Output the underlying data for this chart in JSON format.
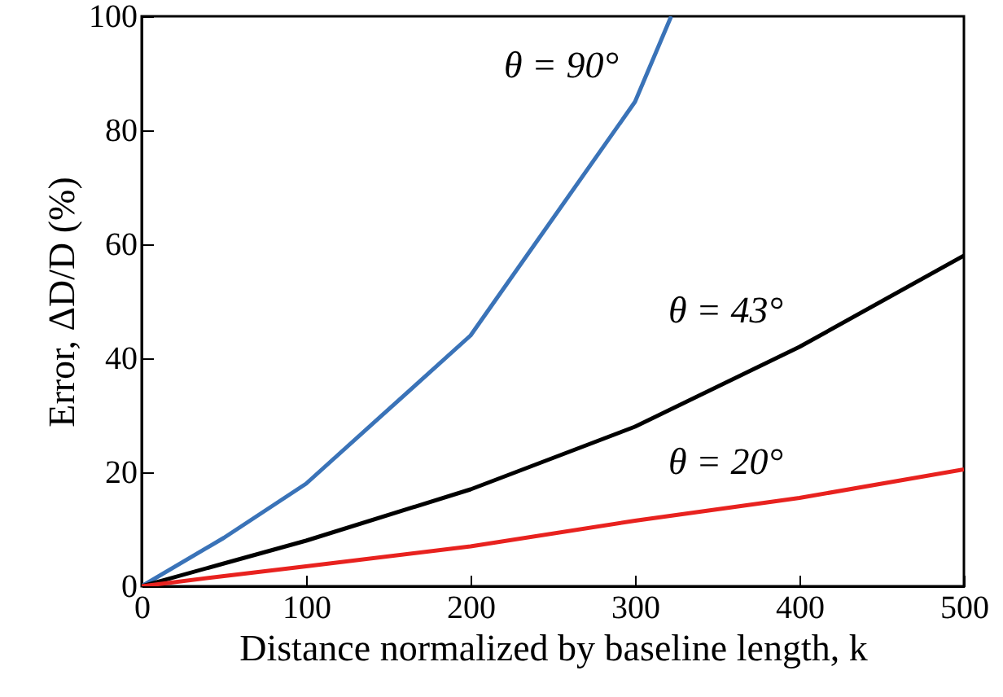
{
  "chart_data": {
    "type": "line",
    "xlabel": "Distance normalized by baseline length, k",
    "ylabel": "Error, ΔD/D (%)",
    "x": [
      0,
      50,
      100,
      200,
      300,
      400,
      500
    ],
    "series": [
      {
        "name": "θ = 90°",
        "color": "#3a73b8",
        "x": [
          0,
          50,
          100,
          200,
          300,
          322
        ],
        "values": [
          0,
          8.5,
          18,
          44,
          85,
          100
        ]
      },
      {
        "name": "θ = 43°",
        "color": "#000000",
        "values": [
          0,
          4,
          8,
          17,
          28,
          42,
          58
        ]
      },
      {
        "name": "θ = 20°",
        "color": "#e8221f",
        "values": [
          0,
          1.8,
          3.5,
          7,
          11.5,
          15.5,
          20.5
        ]
      }
    ],
    "xlim": [
      0,
      500
    ],
    "ylim": [
      0,
      100
    ],
    "xticks": [
      0,
      100,
      200,
      300,
      400,
      500
    ],
    "yticks": [
      0,
      20,
      40,
      60,
      80,
      100
    ],
    "grid": false
  }
}
